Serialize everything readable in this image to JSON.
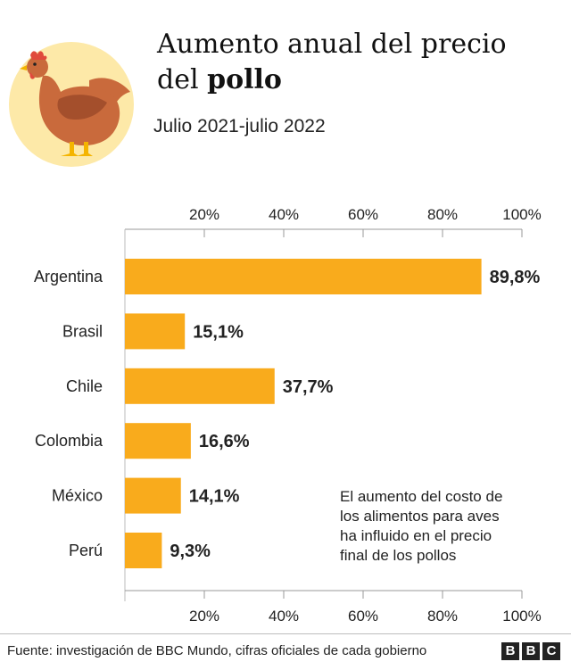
{
  "header": {
    "title_line1": "Aumento anual del precio",
    "title_line2_prefix": "del ",
    "title_line2_bold": "pollo",
    "subtitle": "Julio 2021-julio 2022"
  },
  "annotation": {
    "lines": [
      "El aumento del costo de",
      "los alimentos para aves",
      "ha influido en el precio",
      "final de los pollos"
    ]
  },
  "footer": {
    "source": "Fuente: investigación de BBC Mundo, cifras oficiales de cada gobierno",
    "logo_letters": [
      "B",
      "B",
      "C"
    ]
  },
  "colors": {
    "bar": "#f9ab1c",
    "illustration_circle": "#fde9a8",
    "hen_body": "#c96a3c",
    "hen_dark": "#a44f2c",
    "comb": "#e04a3c",
    "feet": "#f4b400"
  },
  "icons": [
    "hen-illustration"
  ],
  "chart_data": {
    "type": "bar",
    "orientation": "horizontal",
    "categories": [
      "Argentina",
      "Brasil",
      "Chile",
      "Colombia",
      "México",
      "Perú"
    ],
    "values": [
      89.8,
      15.1,
      37.7,
      16.6,
      14.1,
      9.3
    ],
    "value_labels": [
      "89,8%",
      "15,1%",
      "37,7%",
      "16,6%",
      "14,1%",
      "9,3%"
    ],
    "xlim": [
      0,
      100
    ],
    "ticks": [
      20,
      40,
      60,
      80,
      100
    ],
    "tick_labels": [
      "20%",
      "40%",
      "60%",
      "80%",
      "100%"
    ],
    "tick_positions": "top and bottom",
    "grid": false
  }
}
